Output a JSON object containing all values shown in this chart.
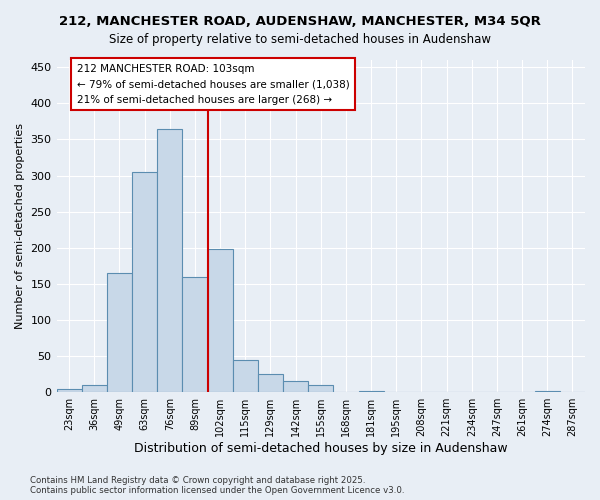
{
  "title": "212, MANCHESTER ROAD, AUDENSHAW, MANCHESTER, M34 5QR",
  "subtitle": "Size of property relative to semi-detached houses in Audenshaw",
  "xlabel": "Distribution of semi-detached houses by size in Audenshaw",
  "ylabel": "Number of semi-detached properties",
  "bins": [
    "23sqm",
    "36sqm",
    "49sqm",
    "63sqm",
    "76sqm",
    "89sqm",
    "102sqm",
    "115sqm",
    "129sqm",
    "142sqm",
    "155sqm",
    "168sqm",
    "181sqm",
    "195sqm",
    "208sqm",
    "221sqm",
    "234sqm",
    "247sqm",
    "261sqm",
    "274sqm",
    "287sqm"
  ],
  "bar_values": [
    5,
    10,
    165,
    305,
    365,
    160,
    198,
    44,
    25,
    15,
    10,
    0,
    1,
    0,
    0,
    0,
    0,
    0,
    0,
    2,
    0
  ],
  "bar_color": "#c8d8e8",
  "bar_edge_color": "#5b8db0",
  "vline_x_index": 6,
  "vline_color": "#cc0000",
  "vline_label": "212 MANCHESTER ROAD: 103sqm",
  "annotation_smaller": "← 79% of semi-detached houses are smaller (1,038)",
  "annotation_larger": "21% of semi-detached houses are larger (268) →",
  "box_color": "#cc0000",
  "ylim": [
    0,
    460
  ],
  "yticks": [
    0,
    50,
    100,
    150,
    200,
    250,
    300,
    350,
    400,
    450
  ],
  "background_color": "#e8eef5",
  "grid_color": "#ffffff",
  "footer1": "Contains HM Land Registry data © Crown copyright and database right 2025.",
  "footer2": "Contains public sector information licensed under the Open Government Licence v3.0."
}
